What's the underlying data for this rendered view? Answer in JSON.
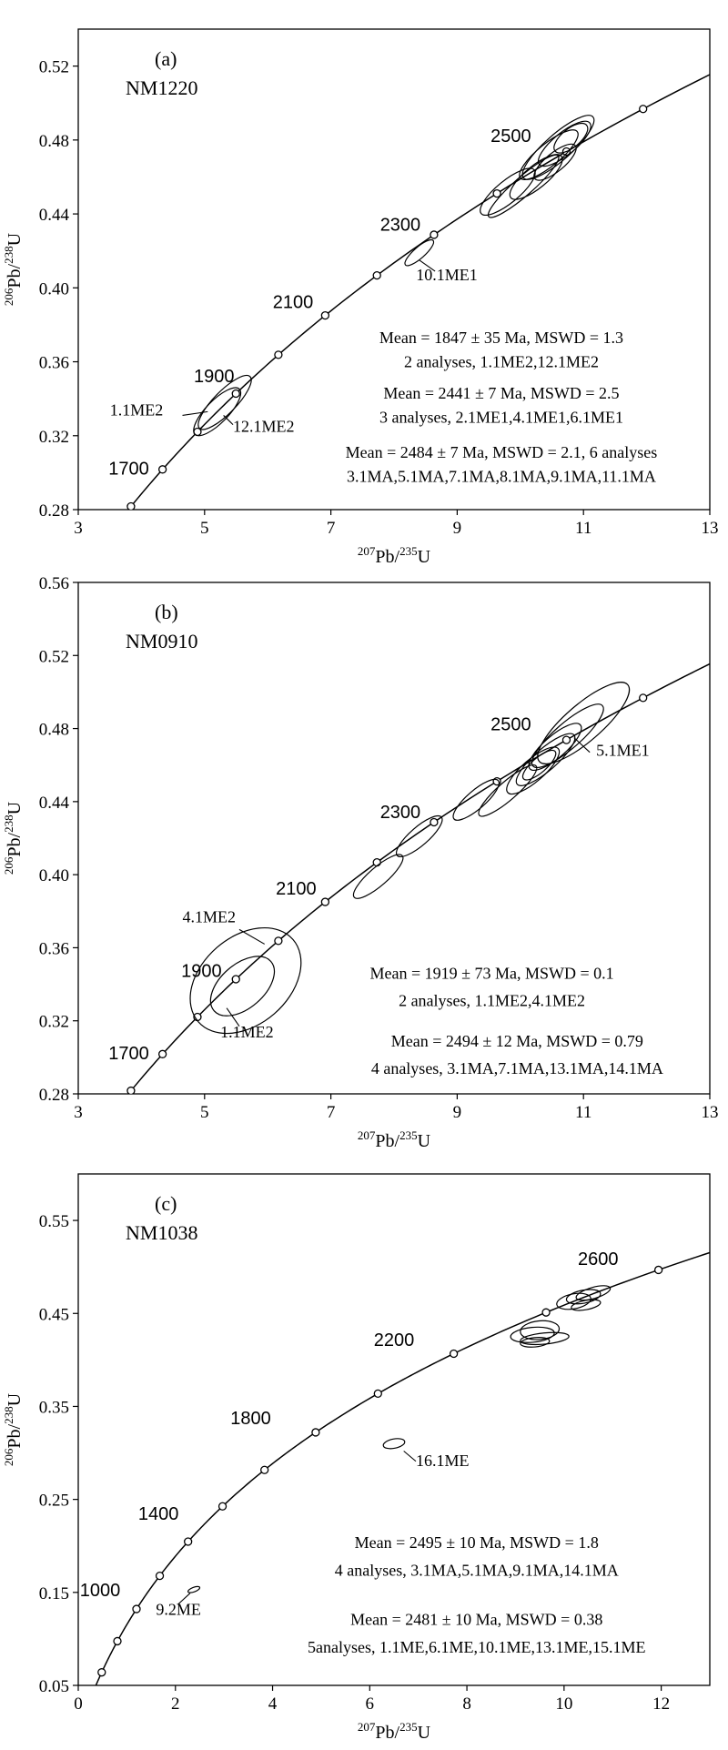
{
  "chart_data": [
    {
      "type": "scatter",
      "panel_label": "(a)",
      "sample": "NM1220",
      "xlabel": {
        "top": "207",
        "pre": "Pb/",
        "mid": "235",
        "post": "U"
      },
      "ylabel": {
        "top": "206",
        "pre": "Pb/",
        "mid": "238",
        "post": "U"
      },
      "xlim": [
        3,
        13
      ],
      "ylim": [
        0.28,
        0.54
      ],
      "x_ticks": [
        3,
        5,
        7,
        9,
        11,
        13
      ],
      "x_tick_labels": [
        "3",
        "5",
        "7",
        "9",
        "11",
        "13"
      ],
      "y_ticks": [
        0.28,
        0.32,
        0.36,
        0.4,
        0.44,
        0.48,
        0.52
      ],
      "y_tick_labels": [
        "0.28",
        "0.32",
        "0.36",
        "0.40",
        "0.44",
        "0.48",
        "0.52"
      ],
      "concordia_ages": [
        1600,
        1700,
        1800,
        1900,
        2000,
        2100,
        2200,
        2300,
        2400,
        2500,
        2600
      ],
      "age_labels": [
        {
          "age": 1700,
          "text": "1700",
          "x": 3.8,
          "y": 0.299
        },
        {
          "age": 1900,
          "text": "1900",
          "x": 5.15,
          "y": 0.349
        },
        {
          "age": 2100,
          "text": "2100",
          "x": 6.4,
          "y": 0.389
        },
        {
          "age": 2300,
          "text": "2300",
          "x": 8.1,
          "y": 0.431
        },
        {
          "age": 2500,
          "text": "2500",
          "x": 9.85,
          "y": 0.479
        }
      ],
      "ellipses": [
        {
          "x": 5.2,
          "y": 0.333,
          "rx": 0.35,
          "ry": 0.006,
          "angle": 0.035
        },
        {
          "x": 5.32,
          "y": 0.338,
          "rx": 0.4,
          "ry": 0.006,
          "angle": 0.035
        },
        {
          "x": 8.4,
          "y": 0.419,
          "rx": 0.22,
          "ry": 0.003,
          "angle": 0.03
        },
        {
          "x": 9.8,
          "y": 0.452,
          "rx": 0.42,
          "ry": 0.006,
          "angle": 0.028
        },
        {
          "x": 10.05,
          "y": 0.455,
          "rx": 0.55,
          "ry": 0.005,
          "angle": 0.03
        },
        {
          "x": 10.25,
          "y": 0.46,
          "rx": 0.4,
          "ry": 0.006,
          "angle": 0.028
        },
        {
          "x": 10.45,
          "y": 0.472,
          "rx": 0.45,
          "ry": 0.006,
          "angle": 0.028
        },
        {
          "x": 10.6,
          "y": 0.476,
          "rx": 0.55,
          "ry": 0.007,
          "angle": 0.03
        },
        {
          "x": 10.7,
          "y": 0.478,
          "rx": 0.4,
          "ry": 0.006,
          "angle": 0.028
        },
        {
          "x": 10.55,
          "y": 0.468,
          "rx": 0.32,
          "ry": 0.005,
          "angle": 0.028
        },
        {
          "x": 10.8,
          "y": 0.481,
          "rx": 0.25,
          "ry": 0.005,
          "angle": 0.028
        }
      ],
      "annotations": [
        {
          "text": "1.1ME2",
          "x": 3.5,
          "y": 0.331,
          "anchor": "start",
          "line": [
            4.65,
            0.331,
            5.05,
            0.333
          ]
        },
        {
          "text": "12.1ME2",
          "x": 5.45,
          "y": 0.322,
          "anchor": "start",
          "line": [
            5.45,
            0.326,
            5.3,
            0.331
          ]
        },
        {
          "text": "10.1ME1",
          "x": 8.35,
          "y": 0.404,
          "anchor": "start",
          "line": [
            8.65,
            0.409,
            8.4,
            0.415
          ]
        }
      ],
      "stats": [
        {
          "text": "Mean = 1847 ± 35 Ma, MSWD = 1.3",
          "x": 9.7,
          "y": 0.37
        },
        {
          "text": "2 analyses, 1.1ME2,12.1ME2",
          "x": 9.7,
          "y": 0.357
        },
        {
          "text": "Mean = 2441 ± 7 Ma, MSWD = 2.5",
          "x": 9.7,
          "y": 0.34
        },
        {
          "text": "3 analyses, 2.1ME1,4.1ME1,6.1ME1",
          "x": 9.7,
          "y": 0.327
        },
        {
          "text": "Mean = 2484 ± 7 Ma, MSWD = 2.1, 6 analyses",
          "x": 9.7,
          "y": 0.308
        },
        {
          "text": "3.1MA,5.1MA,7.1MA,8.1MA,9.1MA,11.1MA",
          "x": 9.7,
          "y": 0.295
        }
      ]
    },
    {
      "type": "scatter",
      "panel_label": "(b)",
      "sample": "NM0910",
      "xlabel": {
        "top": "207",
        "pre": "Pb/",
        "mid": "235",
        "post": "U"
      },
      "ylabel": {
        "top": "206",
        "pre": "Pb/",
        "mid": "238",
        "post": "U"
      },
      "xlim": [
        3,
        13
      ],
      "ylim": [
        0.28,
        0.56
      ],
      "x_ticks": [
        3,
        5,
        7,
        9,
        11,
        13
      ],
      "x_tick_labels": [
        "3",
        "5",
        "7",
        "9",
        "11",
        "13"
      ],
      "y_ticks": [
        0.28,
        0.32,
        0.36,
        0.4,
        0.44,
        0.48,
        0.52,
        0.56
      ],
      "y_tick_labels": [
        "0.28",
        "0.32",
        "0.36",
        "0.40",
        "0.44",
        "0.48",
        "0.52",
        "0.56"
      ],
      "concordia_ages": [
        1600,
        1700,
        1800,
        1900,
        2000,
        2100,
        2200,
        2300,
        2400,
        2500,
        2600
      ],
      "age_labels": [
        {
          "age": 1700,
          "text": "1700",
          "x": 3.8,
          "y": 0.299
        },
        {
          "age": 1900,
          "text": "1900",
          "x": 4.95,
          "y": 0.344
        },
        {
          "age": 2100,
          "text": "2100",
          "x": 6.45,
          "y": 0.389
        },
        {
          "age": 2300,
          "text": "2300",
          "x": 8.1,
          "y": 0.431
        },
        {
          "age": 2500,
          "text": "2500",
          "x": 9.85,
          "y": 0.479
        }
      ],
      "ellipses": [
        {
          "x": 5.65,
          "y": 0.342,
          "rx": 0.75,
          "ry": 0.024,
          "angle": 0.03
        },
        {
          "x": 5.6,
          "y": 0.339,
          "rx": 0.45,
          "ry": 0.012,
          "angle": 0.03
        },
        {
          "x": 7.75,
          "y": 0.399,
          "rx": 0.38,
          "ry": 0.005,
          "angle": 0.03
        },
        {
          "x": 8.4,
          "y": 0.421,
          "rx": 0.35,
          "ry": 0.005,
          "angle": 0.03
        },
        {
          "x": 9.3,
          "y": 0.441,
          "rx": 0.35,
          "ry": 0.005,
          "angle": 0.03
        },
        {
          "x": 9.8,
          "y": 0.446,
          "rx": 0.45,
          "ry": 0.005,
          "angle": 0.03
        },
        {
          "x": 10.2,
          "y": 0.457,
          "rx": 0.4,
          "ry": 0.006,
          "angle": 0.03
        },
        {
          "x": 10.4,
          "y": 0.463,
          "rx": 0.45,
          "ry": 0.006,
          "angle": 0.03
        },
        {
          "x": 10.55,
          "y": 0.47,
          "rx": 0.4,
          "ry": 0.006,
          "angle": 0.03
        },
        {
          "x": 10.75,
          "y": 0.476,
          "rx": 0.55,
          "ry": 0.007,
          "angle": 0.03
        },
        {
          "x": 11.0,
          "y": 0.483,
          "rx": 0.7,
          "ry": 0.01,
          "angle": 0.03
        },
        {
          "x": 10.3,
          "y": 0.46,
          "rx": 0.25,
          "ry": 0.004,
          "angle": 0.03
        }
      ],
      "annotations": [
        {
          "text": "4.1ME2",
          "x": 4.65,
          "y": 0.374,
          "anchor": "start",
          "line": [
            5.55,
            0.37,
            5.95,
            0.362
          ]
        },
        {
          "text": "1.1ME2",
          "x": 5.25,
          "y": 0.311,
          "anchor": "start",
          "line": [
            5.55,
            0.317,
            5.35,
            0.327
          ]
        },
        {
          "text": "5.1ME1",
          "x": 11.2,
          "y": 0.465,
          "anchor": "start",
          "line": [
            11.1,
            0.467,
            10.85,
            0.475
          ]
        }
      ],
      "stats": [
        {
          "text": "Mean = 1919 ± 73  Ma, MSWD = 0.1",
          "x": 9.55,
          "y": 0.343
        },
        {
          "text": "2 analyses, 1.1ME2,4.1ME2",
          "x": 9.55,
          "y": 0.328
        },
        {
          "text": "Mean = 2494 ± 12 Ma, MSWD = 0.79",
          "x": 9.95,
          "y": 0.306
        },
        {
          "text": "4 analyses, 3.1MA,7.1MA,13.1MA,14.1MA",
          "x": 9.95,
          "y": 0.291
        }
      ]
    },
    {
      "type": "scatter",
      "panel_label": "(c)",
      "sample": "NM1038",
      "xlabel": {
        "top": "207",
        "pre": "Pb/",
        "mid": "235",
        "post": "U"
      },
      "ylabel": {
        "top": "206",
        "pre": "Pb/",
        "mid": "238",
        "post": "U"
      },
      "xlim": [
        0,
        13
      ],
      "ylim": [
        0.05,
        0.6
      ],
      "x_ticks": [
        0,
        2,
        4,
        6,
        8,
        10,
        12
      ],
      "x_tick_labels": [
        "0",
        "2",
        "4",
        "6",
        "8",
        "10",
        "12"
      ],
      "y_ticks": [
        0.05,
        0.15,
        0.25,
        0.35,
        0.45,
        0.55
      ],
      "y_tick_labels": [
        "0.05",
        "0.15",
        "0.25",
        "0.35",
        "0.45",
        "0.55"
      ],
      "concordia_ages": [
        400,
        600,
        800,
        1000,
        1200,
        1400,
        1600,
        1800,
        2000,
        2200,
        2400,
        2600
      ],
      "age_labels": [
        {
          "age": 1000,
          "text": "1000",
          "x": 0.45,
          "y": 0.146
        },
        {
          "age": 1400,
          "text": "1400",
          "x": 1.65,
          "y": 0.228
        },
        {
          "age": 1800,
          "text": "1800",
          "x": 3.55,
          "y": 0.331
        },
        {
          "age": 2200,
          "text": "2200",
          "x": 6.5,
          "y": 0.415
        },
        {
          "age": 2600,
          "text": "2600",
          "x": 10.7,
          "y": 0.502
        }
      ],
      "ellipses": [
        {
          "x": 2.38,
          "y": 0.153,
          "rx": 0.12,
          "ry": 0.002,
          "angle": 0.02
        },
        {
          "x": 6.5,
          "y": 0.31,
          "rx": 0.22,
          "ry": 0.005,
          "angle": 0.01
        },
        {
          "x": 9.35,
          "y": 0.427,
          "rx": 0.45,
          "ry": 0.008,
          "angle": 0.005
        },
        {
          "x": 9.5,
          "y": 0.432,
          "rx": 0.4,
          "ry": 0.01,
          "angle": 0.005
        },
        {
          "x": 9.6,
          "y": 0.423,
          "rx": 0.5,
          "ry": 0.006,
          "angle": 0.005
        },
        {
          "x": 9.4,
          "y": 0.419,
          "rx": 0.3,
          "ry": 0.005,
          "angle": 0.005
        },
        {
          "x": 10.2,
          "y": 0.463,
          "rx": 0.35,
          "ry": 0.008,
          "angle": 0.01
        },
        {
          "x": 10.4,
          "y": 0.468,
          "rx": 0.35,
          "ry": 0.007,
          "angle": 0.01
        },
        {
          "x": 10.6,
          "y": 0.472,
          "rx": 0.35,
          "ry": 0.006,
          "angle": 0.015
        },
        {
          "x": 10.45,
          "y": 0.459,
          "rx": 0.3,
          "ry": 0.005,
          "angle": 0.01
        }
      ],
      "annotations": [
        {
          "text": "16.1ME",
          "x": 6.95,
          "y": 0.286,
          "anchor": "start",
          "line": [
            6.95,
            0.291,
            6.7,
            0.302
          ]
        },
        {
          "text": "9.2ME",
          "x": 1.6,
          "y": 0.126,
          "anchor": "start",
          "line": [
            2.05,
            0.137,
            2.3,
            0.149
          ]
        }
      ],
      "stats": [
        {
          "text": "Mean = 2495 ± 10 Ma, MSWD = 1.8",
          "x": 8.2,
          "y": 0.198
        },
        {
          "text": "4 analyses, 3.1MA,5.1MA,9.1MA,14.1MA",
          "x": 8.2,
          "y": 0.168
        },
        {
          "text": "Mean = 2481 ± 10 Ma, MSWD = 0.38",
          "x": 8.2,
          "y": 0.115
        },
        {
          "text": "5analyses, 1.1ME,6.1ME,10.1ME,13.1ME,15.1ME",
          "x": 8.2,
          "y": 0.085
        }
      ]
    }
  ]
}
